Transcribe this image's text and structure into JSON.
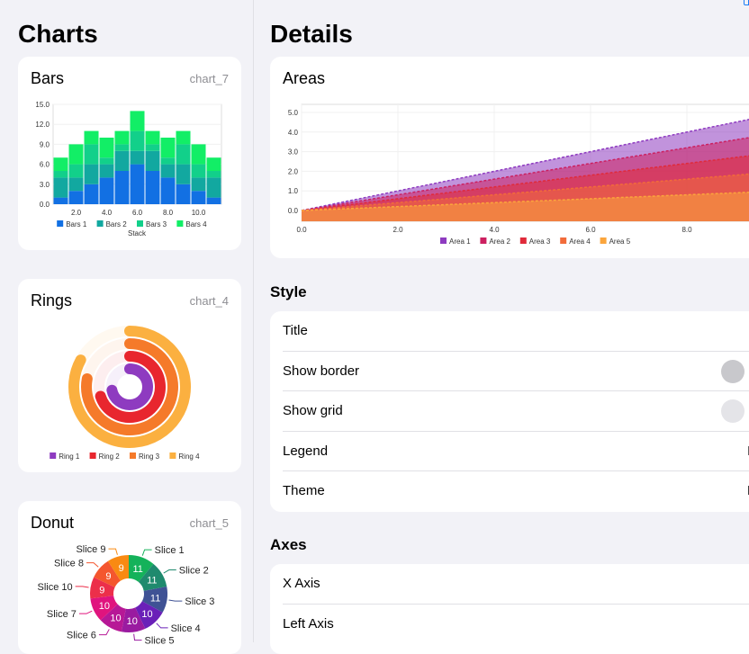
{
  "left": {
    "title": "Charts"
  },
  "right": {
    "title": "Details"
  },
  "cards": {
    "bars": {
      "title": "Bars",
      "id": "chart_7"
    },
    "rings": {
      "title": "Rings",
      "id": "chart_4"
    },
    "donut": {
      "title": "Donut",
      "id": "chart_5"
    },
    "areas": {
      "title": "Areas"
    }
  },
  "style": {
    "heading": "Style",
    "rows": [
      {
        "label": "Title"
      },
      {
        "label": "Show border"
      },
      {
        "label": "Show grid"
      },
      {
        "label": "Legend",
        "value": "I"
      },
      {
        "label": "Theme",
        "value": "R"
      }
    ]
  },
  "axes": {
    "heading": "Axes",
    "rows": [
      {
        "label": "X Axis"
      },
      {
        "label": "Left Axis"
      }
    ]
  },
  "chart_data": [
    {
      "type": "bar",
      "stacked": true,
      "title": "Bars",
      "xlabel": "Stack",
      "x": [
        1,
        2,
        3,
        4,
        5,
        6,
        7,
        8,
        9,
        10,
        11
      ],
      "xticks": [
        "2.0",
        "4.0",
        "6.0",
        "8.0",
        "10.0"
      ],
      "yticks": [
        "0.0",
        "3.0",
        "6.0",
        "9.0",
        "12.0",
        "15.0"
      ],
      "ylim": [
        0,
        15
      ],
      "series": [
        {
          "name": "Bars 1",
          "color": "#1270e3",
          "values": [
            1,
            2,
            3,
            4,
            5,
            6,
            5,
            4,
            3,
            2,
            1
          ]
        },
        {
          "name": "Bars 2",
          "color": "#12a8a0",
          "values": [
            3,
            2,
            3,
            2,
            3,
            2,
            3,
            2,
            3,
            2,
            3
          ]
        },
        {
          "name": "Bars 3",
          "color": "#12d08a",
          "values": [
            1,
            2,
            3,
            1,
            1,
            3,
            1,
            1,
            3,
            2,
            1
          ]
        },
        {
          "name": "Bars 4",
          "color": "#12ee66",
          "values": [
            2,
            3,
            2,
            3,
            2,
            3,
            2,
            3,
            2,
            3,
            2
          ]
        }
      ]
    },
    {
      "type": "ring",
      "title": "Rings",
      "series": [
        {
          "name": "Ring 1",
          "color": "#8e3bc0",
          "value": 0.72
        },
        {
          "name": "Ring 2",
          "color": "#e8262e",
          "value": 0.7
        },
        {
          "name": "Ring 3",
          "color": "#f57a2a",
          "value": 0.78
        },
        {
          "name": "Ring 4",
          "color": "#fbb040",
          "value": 0.83
        }
      ]
    },
    {
      "type": "pie",
      "title": "Donut",
      "slices": [
        {
          "name": "Slice 1",
          "value": 11,
          "color": "#14b25a"
        },
        {
          "name": "Slice 2",
          "value": 11,
          "color": "#1f8a6e"
        },
        {
          "name": "Slice 3",
          "value": 11,
          "color": "#3f5295"
        },
        {
          "name": "Slice 4",
          "value": 10,
          "color": "#6a20b8"
        },
        {
          "name": "Slice 5",
          "value": 10,
          "color": "#9a1ba0"
        },
        {
          "name": "Slice 6",
          "value": 10,
          "color": "#b71896"
        },
        {
          "name": "Slice 7",
          "value": 10,
          "color": "#e0147e"
        },
        {
          "name": "Slice 10",
          "value": 9,
          "color": "#ec2f4a"
        },
        {
          "name": "Slice 8",
          "value": 9,
          "color": "#f4562e"
        },
        {
          "name": "Slice 9",
          "value": 9,
          "color": "#f98a12"
        }
      ]
    },
    {
      "type": "area",
      "title": "Areas",
      "xticks": [
        "0.0",
        "2.0",
        "4.0",
        "6.0",
        "8.0"
      ],
      "yticks": [
        "0.0",
        "1.0",
        "2.0",
        "3.0",
        "4.0",
        "5.0"
      ],
      "xlim": [
        0,
        10
      ],
      "ylim": [
        -0.5,
        5.3
      ],
      "series": [
        {
          "name": "Area 1",
          "color": "#8e3bc0",
          "slope": 0.5
        },
        {
          "name": "Area 2",
          "color": "#cc2060",
          "slope": 0.4
        },
        {
          "name": "Area 3",
          "color": "#e02a3a",
          "slope": 0.3
        },
        {
          "name": "Area 4",
          "color": "#f26b3a",
          "slope": 0.2
        },
        {
          "name": "Area 5",
          "color": "#fba53c",
          "slope": 0.1
        }
      ]
    }
  ]
}
